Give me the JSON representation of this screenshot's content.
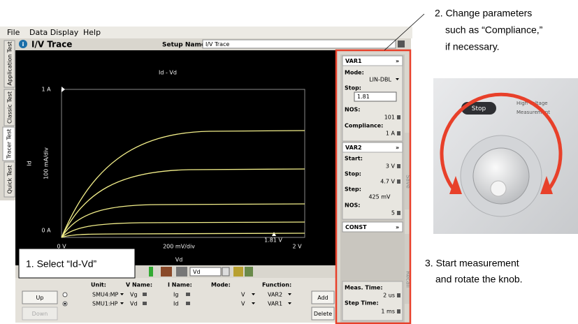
{
  "menu": [
    "File",
    "Data Display",
    "Help"
  ],
  "side_tabs": [
    "Application Test",
    "Classic Test",
    "Tracer Test",
    "Quick Test"
  ],
  "header": {
    "title": "I/V Trace",
    "setup_label": "Setup Name:",
    "setup_value": "I/V Trace"
  },
  "graph": {
    "title": "Id - Vd",
    "y_label": "Id",
    "y_scale": "100 mA/div",
    "x_label": "Vd",
    "x_scale": "200 mV/div",
    "y_top": "1 A",
    "y_bottom": "0 A",
    "x_left": "0 V",
    "x_right": "2 V",
    "marker": "1.81 V"
  },
  "toolbar": {
    "axis_select": "Vd"
  },
  "table": {
    "headers": [
      "Unit:",
      "V Name:",
      "I Name:",
      "Mode:",
      "Function:"
    ],
    "rows": [
      [
        "SMU4:MP",
        "Vg",
        "Ig",
        "V",
        "VAR2"
      ],
      [
        "SMU1:HP",
        "Vd",
        "Id",
        "V",
        "VAR1"
      ]
    ]
  },
  "buttons": {
    "up": "Up",
    "down": "Down",
    "add": "Add",
    "delete": "Delete"
  },
  "var1": {
    "title": "VAR1",
    "mode_label": "Mode:",
    "mode": "LIN-DBL",
    "stop_label": "Stop:",
    "stop": "1.81",
    "nos_label": "NOS:",
    "nos": "101",
    "compliance_label": "Compliance:",
    "compliance": "1 A"
  },
  "var2": {
    "title": "VAR2",
    "start_label": "Start:",
    "start": "3 V",
    "stop_label": "Stop:",
    "stop": "4.7 V",
    "step_label": "Step:",
    "step": "425 mV",
    "nos_label": "NOS:",
    "nos": "5"
  },
  "const": {
    "title": "CONST"
  },
  "timing": {
    "meas_label": "Meas. Time:",
    "meas": "2 us",
    "step_label": "Step Time:",
    "step": "1 ms"
  },
  "side_buttons": [
    "Save",
    "Recall"
  ],
  "photo": {
    "button": "Stop",
    "label": [
      "High Voltage",
      "Measurement"
    ]
  },
  "callouts": [
    {
      "lines": [
        "1.  Select “Id-Vd”"
      ]
    },
    {
      "lines": [
        "2. Change parameters",
        "such as “Compliance,”",
        "if necessary."
      ]
    },
    {
      "lines": [
        "3.  Start measurement",
        "and rotate the knob."
      ]
    }
  ]
}
